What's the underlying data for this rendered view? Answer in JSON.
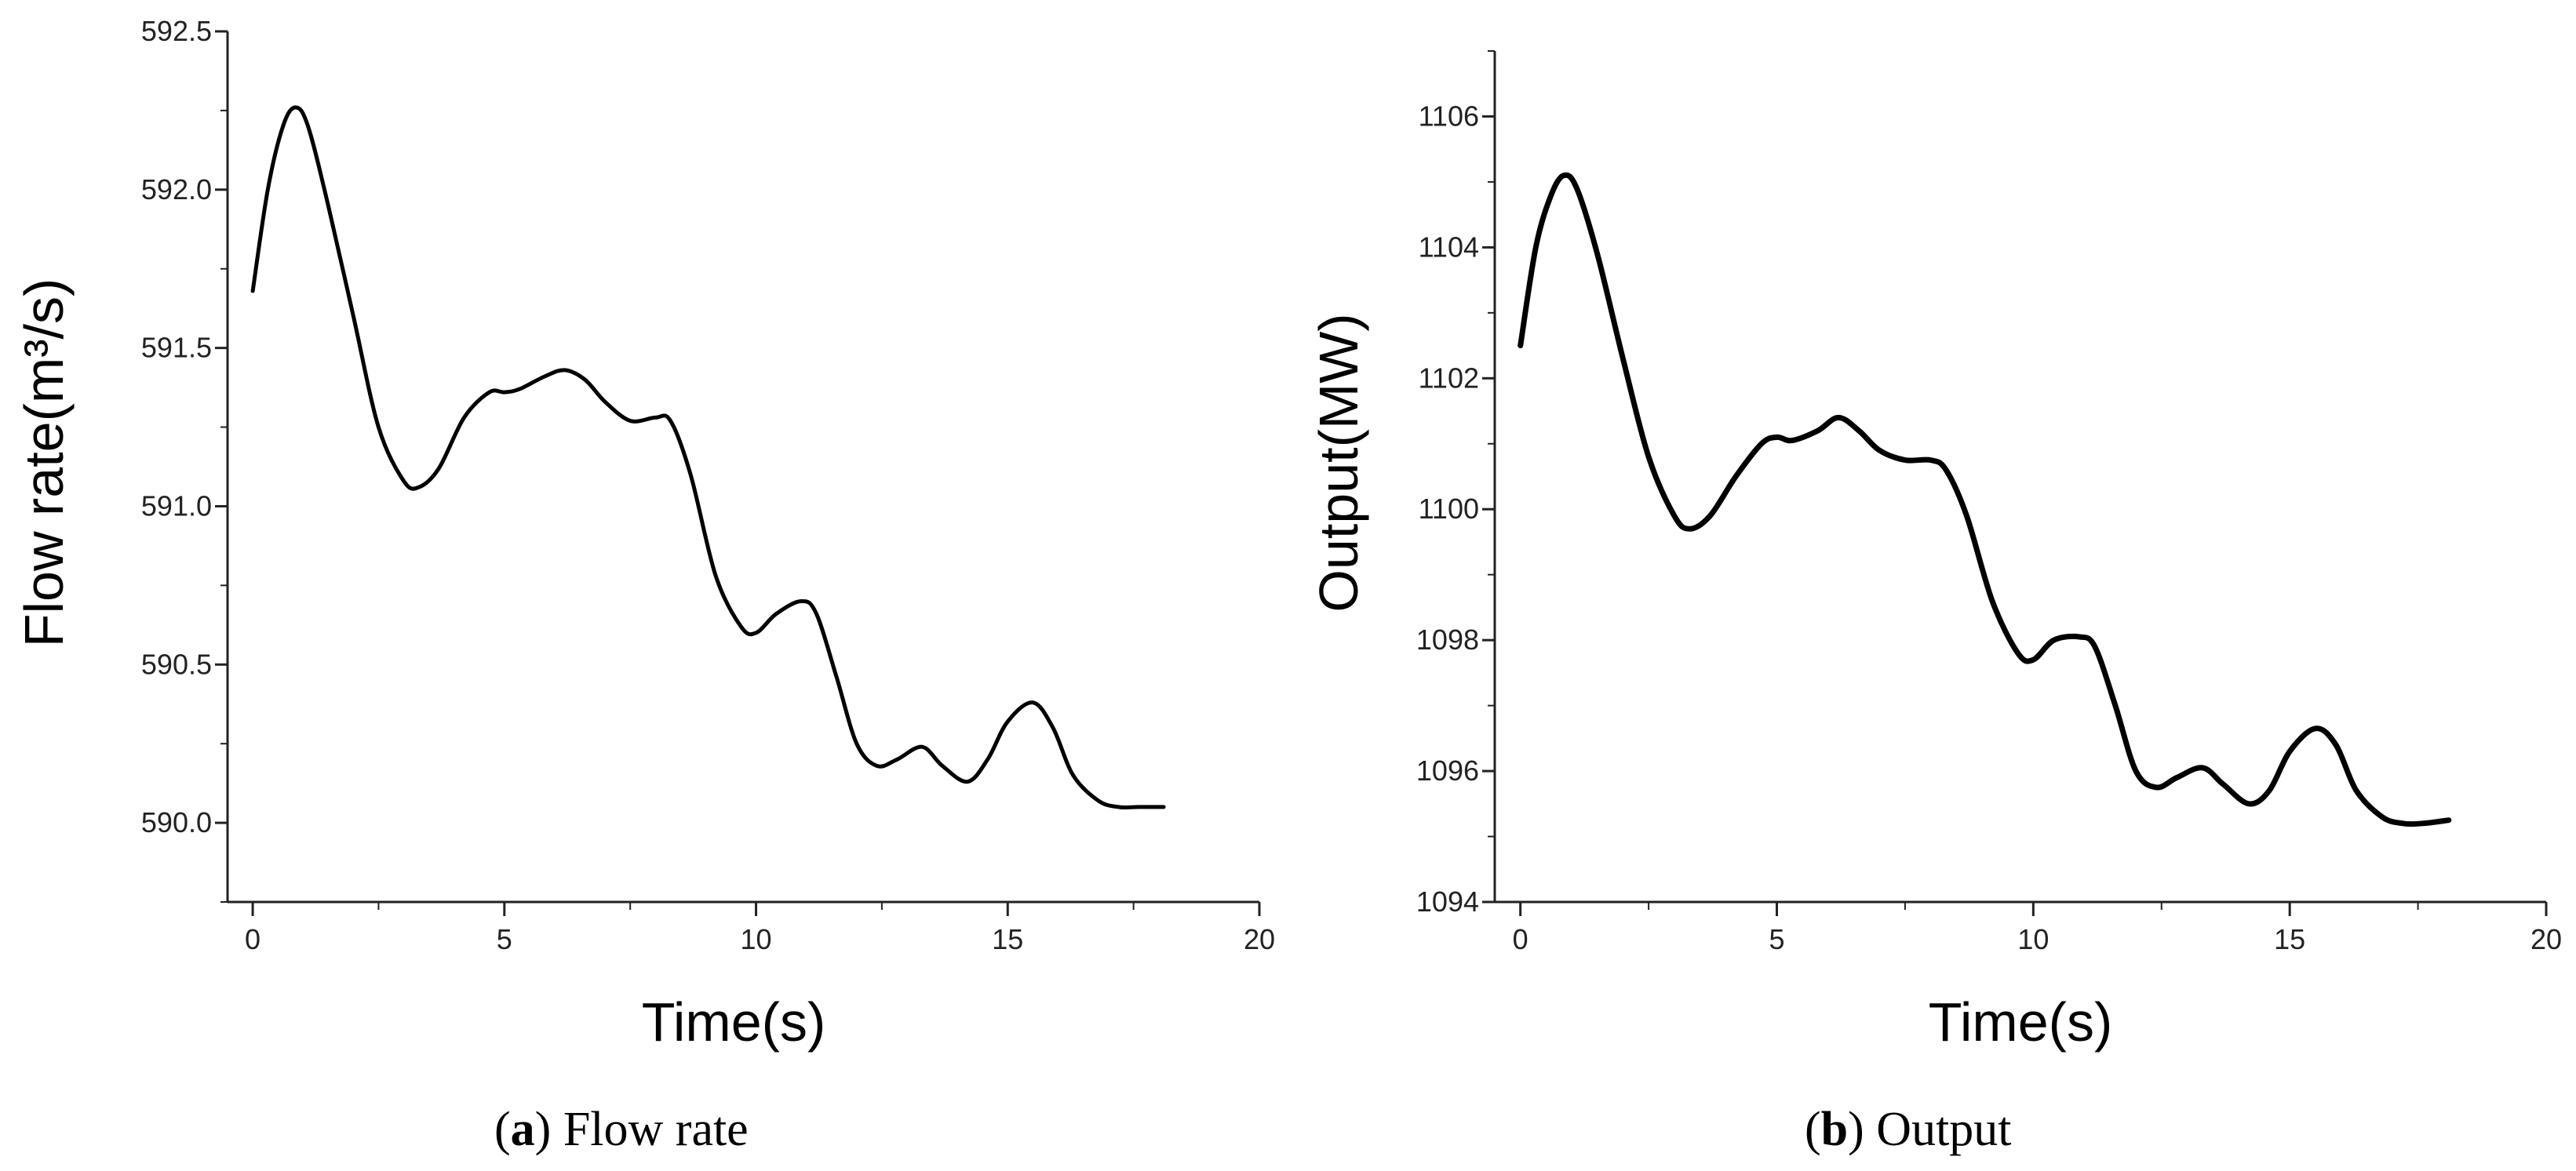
{
  "chart_data": [
    {
      "type": "line",
      "xlabel": "Time(s)",
      "ylabel": "Flow rate(m³/s)",
      "xlim": [
        -0.5,
        20
      ],
      "ylim": [
        589.75,
        592.5
      ],
      "xticks": [
        "0",
        "5",
        "10",
        "15",
        "20"
      ],
      "yticks": [
        "590.0",
        "590.5",
        "591.0",
        "591.5",
        "592.0",
        "592.5"
      ],
      "grid": false,
      "line_color": "#000000",
      "caption": {
        "letter": "a",
        "text": "Flow rate"
      },
      "series": [
        {
          "x": [
            0,
            0.3,
            0.6,
            0.85,
            1.1,
            1.5,
            2.0,
            2.5,
            3.0,
            3.3,
            3.7,
            4.2,
            4.7,
            5.0,
            5.3,
            5.8,
            6.2,
            6.6,
            7.0,
            7.5,
            8.0,
            8.3,
            8.7,
            9.2,
            9.7,
            10.0,
            10.4,
            10.9,
            11.2,
            11.6,
            12.0,
            12.4,
            12.8,
            13.3,
            13.7,
            14.2,
            14.6,
            15.0,
            15.5,
            15.9,
            16.3,
            16.8,
            17.2,
            17.6,
            18.1
          ],
          "y": [
            591.68,
            592.0,
            592.2,
            592.26,
            592.2,
            591.95,
            591.6,
            591.25,
            591.08,
            591.06,
            591.12,
            591.28,
            591.36,
            591.36,
            591.37,
            591.41,
            591.43,
            591.4,
            591.33,
            591.27,
            591.28,
            591.27,
            591.1,
            590.78,
            590.62,
            590.6,
            590.66,
            590.7,
            590.66,
            590.46,
            590.25,
            590.18,
            590.2,
            590.24,
            590.18,
            590.13,
            590.2,
            590.32,
            590.38,
            590.3,
            590.15,
            590.07,
            590.05,
            590.05,
            590.05
          ]
        }
      ]
    },
    {
      "type": "line",
      "xlabel": "Time(s)",
      "ylabel": "Output(MW)",
      "xlim": [
        -0.5,
        20
      ],
      "ylim": [
        1094,
        1107
      ],
      "xticks": [
        "0",
        "5",
        "10",
        "15",
        "20"
      ],
      "yticks": [
        "1094",
        "1096",
        "1098",
        "1100",
        "1102",
        "1104",
        "1106"
      ],
      "grid": false,
      "line_color": "#000000",
      "caption": {
        "letter": "b",
        "text": "Output"
      },
      "series": [
        {
          "x": [
            0,
            0.3,
            0.6,
            0.85,
            1.1,
            1.5,
            2.0,
            2.5,
            3.0,
            3.3,
            3.7,
            4.2,
            4.7,
            5.0,
            5.3,
            5.8,
            6.2,
            6.6,
            7.0,
            7.5,
            8.0,
            8.3,
            8.7,
            9.2,
            9.7,
            10.0,
            10.4,
            10.9,
            11.2,
            11.6,
            12.0,
            12.4,
            12.8,
            13.3,
            13.7,
            14.2,
            14.6,
            15.0,
            15.5,
            15.9,
            16.3,
            16.8,
            17.2,
            17.6,
            18.1
          ],
          "y": [
            1102.5,
            1104.0,
            1104.8,
            1105.1,
            1104.9,
            1103.9,
            1102.3,
            1100.8,
            1099.9,
            1099.7,
            1099.9,
            1100.5,
            1101.0,
            1101.1,
            1101.05,
            1101.2,
            1101.4,
            1101.2,
            1100.9,
            1100.75,
            1100.75,
            1100.6,
            1099.9,
            1098.6,
            1097.8,
            1097.7,
            1098.0,
            1098.05,
            1097.9,
            1097.0,
            1096.0,
            1095.75,
            1095.9,
            1096.05,
            1095.8,
            1095.5,
            1095.7,
            1096.3,
            1096.65,
            1096.4,
            1095.7,
            1095.3,
            1095.2,
            1095.2,
            1095.25
          ]
        }
      ]
    }
  ]
}
